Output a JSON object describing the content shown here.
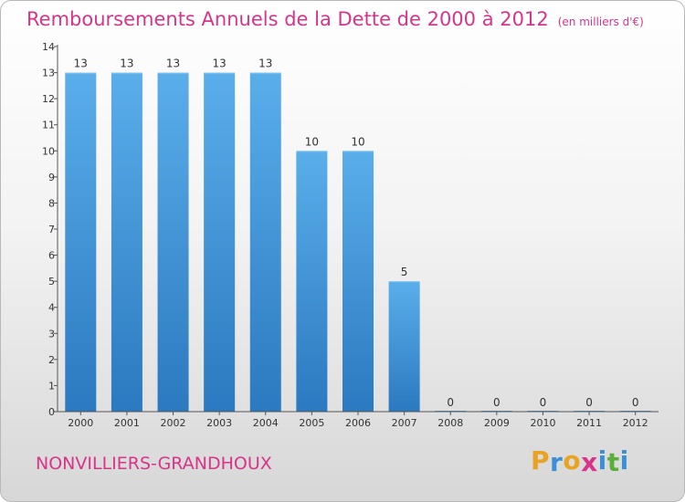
{
  "chart_data": {
    "type": "bar",
    "title": "Remboursements Annuels de la Dette de 2000 à 2012",
    "subtitle": "(en milliers d'€)",
    "categories": [
      "2000",
      "2001",
      "2002",
      "2003",
      "2004",
      "2005",
      "2006",
      "2007",
      "2008",
      "2009",
      "2010",
      "2011",
      "2012"
    ],
    "values": [
      13,
      13,
      13,
      13,
      13,
      10,
      10,
      5,
      0,
      0,
      0,
      0,
      0
    ],
    "data_labels": [
      "13",
      "13",
      "13",
      "13",
      "13",
      "10",
      "10",
      "5",
      "0",
      "0",
      "0",
      "0",
      "0"
    ],
    "y_ticks": [
      "0",
      "1",
      "2",
      "3",
      "4",
      "5",
      "6",
      "7",
      "8",
      "9",
      "10",
      "11",
      "12",
      "13",
      "14"
    ],
    "ylim": [
      0,
      14
    ],
    "grid": false,
    "bar_color": "#3f8fd4"
  },
  "footer": {
    "commune": "NONVILLIERS-GRANDHOUX",
    "logo_letters": [
      "P",
      "r",
      "o",
      "x",
      "i",
      "t",
      "i"
    ],
    "logo_colors": [
      "#e8a323",
      "#3b8fd6",
      "#e8a323",
      "#d8348a",
      "#3b8fd6",
      "#5cae3a",
      "#3b8fd6"
    ]
  }
}
